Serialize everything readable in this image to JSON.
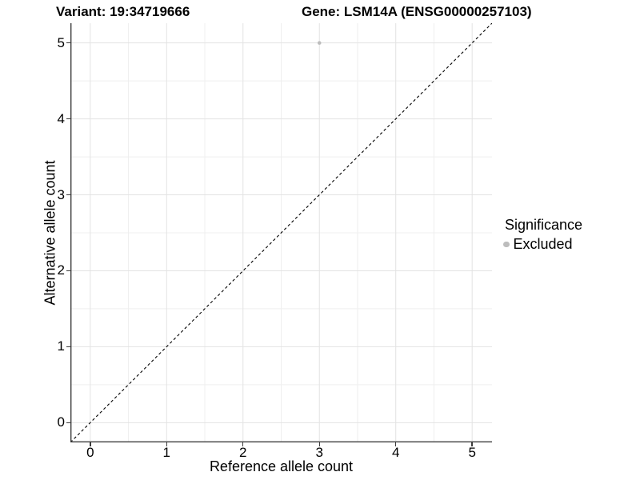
{
  "title": {
    "variant": "Variant: 19:34719666",
    "gene": "Gene: LSM14A (ENSG00000257103)"
  },
  "chart_data": {
    "type": "scatter",
    "xlabel": "Reference allele count",
    "ylabel": "Alternative allele count",
    "xlim": [
      -0.26,
      5.26
    ],
    "ylim": [
      -0.26,
      5.26
    ],
    "x_ticks": [
      0,
      1,
      2,
      3,
      4,
      5
    ],
    "y_ticks": [
      0,
      1,
      2,
      3,
      4,
      5
    ],
    "x_minor_ticks": [
      0.5,
      1.5,
      2.5,
      3.5,
      4.5
    ],
    "y_minor_ticks": [
      0.5,
      1.5,
      2.5,
      3.5,
      4.5
    ],
    "grid": "major+minor",
    "points": [
      {
        "x": 3,
        "y": 5,
        "significance": "Excluded"
      }
    ],
    "reference_line": {
      "type": "identity",
      "style": "dashed",
      "color": "#000000"
    },
    "legend": {
      "position": "right",
      "title": "Significance",
      "items": [
        {
          "label": "Excluded",
          "marker": "circle",
          "color": "#bdbdbd"
        }
      ]
    },
    "colors": {
      "point": "#bdbdbd",
      "grid_major": "#e3e3e3",
      "grid_minor": "#efefef",
      "axis_line": "#3c3c3c",
      "text": "#000000",
      "background": "#ffffff"
    }
  }
}
